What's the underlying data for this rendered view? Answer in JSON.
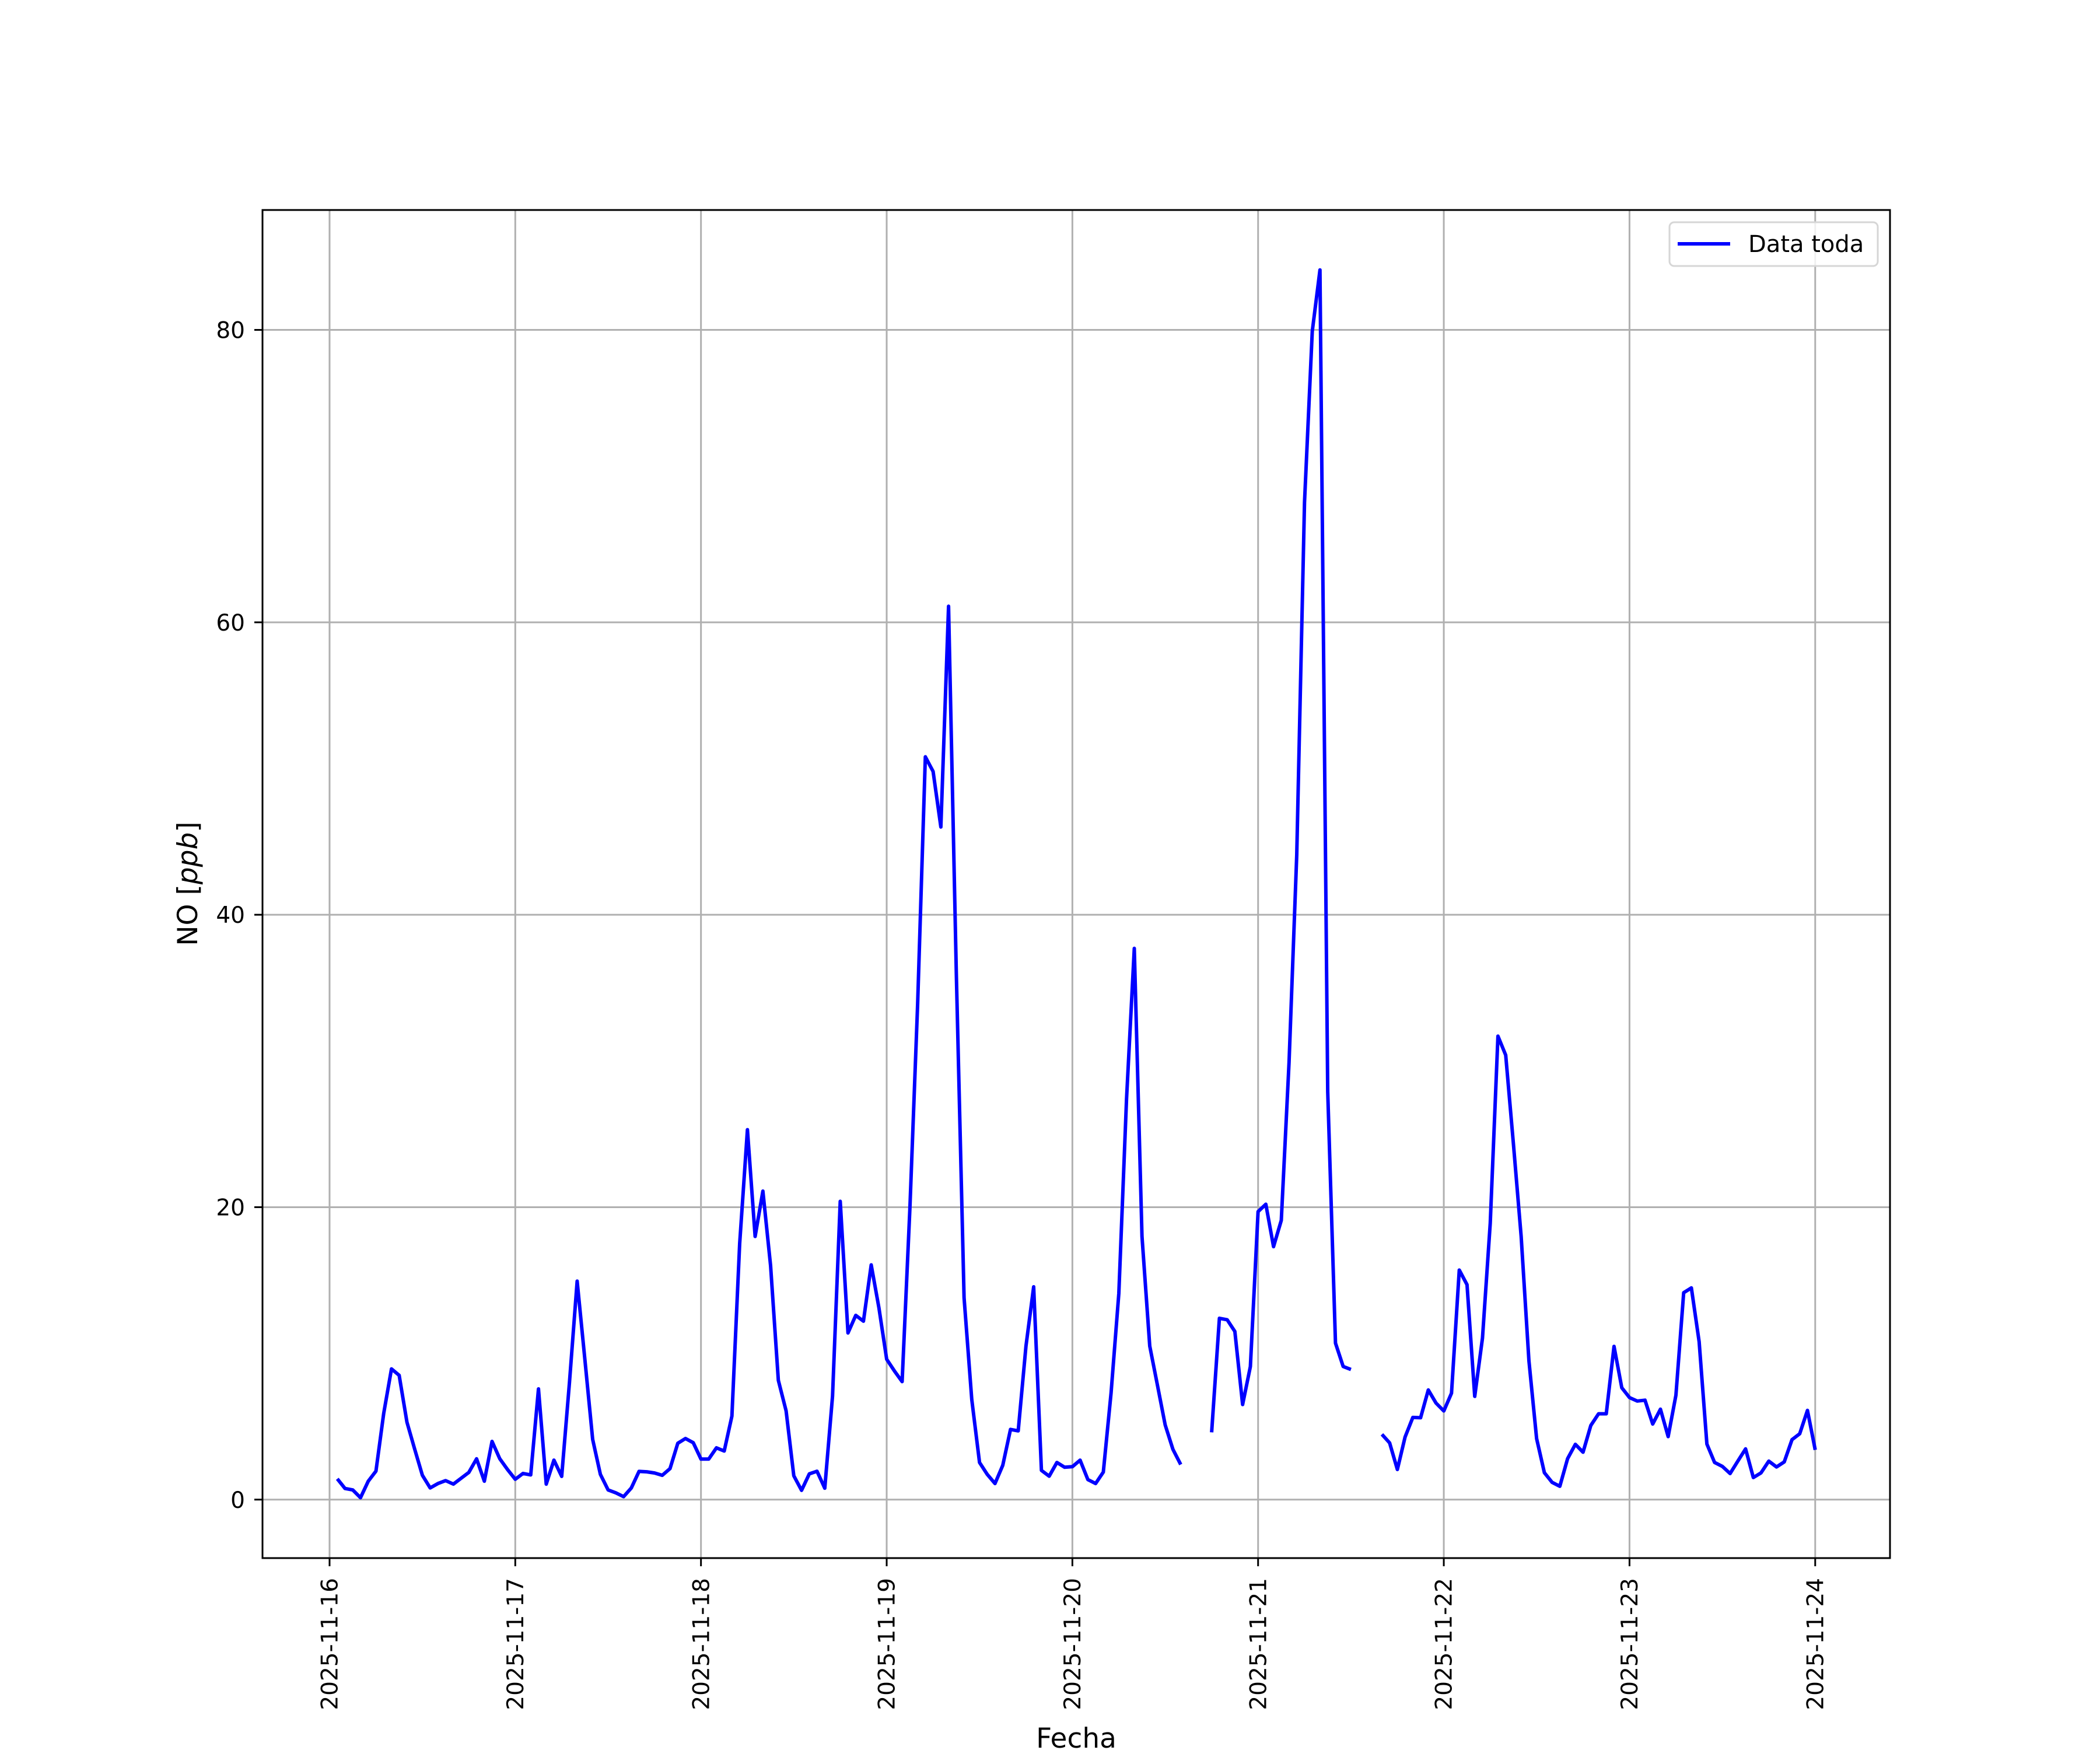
{
  "chart_data": {
    "type": "line",
    "title": "",
    "xlabel": "Fecha",
    "ylabel": "NO [ppb]",
    "ylabel_unit_italic": "ppb",
    "xlim": [
      "2025-11-15 15:20",
      "2025-11-24 09:40"
    ],
    "ylim": [
      -4,
      88.2
    ],
    "x_ticks": [
      "2025-11-16",
      "2025-11-17",
      "2025-11-18",
      "2025-11-19",
      "2025-11-20",
      "2025-11-21",
      "2025-11-22",
      "2025-11-23",
      "2025-11-24"
    ],
    "y_ticks": [
      0,
      20,
      40,
      60,
      80
    ],
    "y_tick_labels": [
      "0",
      "20",
      "40",
      "60",
      "80"
    ],
    "grid": true,
    "legend_placement": "top-right",
    "series": [
      {
        "name": "Data toda",
        "color": "#0000ff",
        "x_start": "2025-11-16 01:00",
        "x_step": "1 hour",
        "values": [
          1.42,
          0.76,
          0.66,
          0.13,
          1.26,
          1.95,
          5.9,
          8.94,
          8.5,
          5.3,
          3.45,
          1.66,
          0.8,
          1.1,
          1.3,
          1.06,
          1.46,
          1.86,
          2.79,
          1.26,
          3.98,
          2.79,
          2.06,
          1.39,
          1.79,
          1.69,
          7.57,
          1.06,
          2.7,
          1.59,
          8.0,
          14.94,
          9.56,
          4.12,
          1.73,
          0.66,
          0.46,
          0.2,
          0.8,
          1.93,
          1.9,
          1.82,
          1.66,
          2.12,
          3.85,
          4.18,
          3.89,
          2.77,
          2.77,
          3.54,
          3.32,
          5.71,
          17.5,
          25.3,
          18.0,
          21.1,
          16.0,
          8.16,
          6.07,
          1.63,
          0.63,
          1.76,
          1.94,
          0.78,
          7.07,
          20.4,
          11.4,
          12.6,
          12.2,
          16.05,
          13.1,
          9.6,
          8.8,
          8.07,
          19.9,
          33.9,
          50.8,
          49.8,
          46.0,
          61.1,
          36.0,
          13.8,
          6.84,
          2.54,
          1.72,
          1.1,
          2.34,
          4.8,
          4.7,
          10.5,
          14.55,
          2.0,
          1.6,
          2.54,
          2.21,
          2.25,
          2.7,
          1.37,
          1.1,
          1.88,
          7.3,
          14.1,
          27.4,
          37.7,
          18.0,
          10.5,
          7.8,
          5.1,
          3.43,
          2.4,
          null,
          null,
          null,
          4.6,
          12.4,
          12.3,
          11.5,
          6.5,
          9.1,
          19.7,
          20.2,
          17.3,
          19.1,
          29.9,
          44.1,
          68.2,
          79.9,
          84.1,
          27.9,
          10.7,
          9.1,
          8.9,
          null,
          null,
          null,
          4.46,
          3.88,
          2.06,
          4.28,
          5.62,
          5.6,
          7.5,
          6.6,
          6.06,
          7.28,
          15.7,
          14.7,
          7.06,
          11.05,
          18.9,
          31.7,
          30.4,
          24.3,
          18.0,
          9.5,
          4.17,
          1.84,
          1.18,
          0.91,
          2.8,
          3.78,
          3.24,
          5.07,
          5.87,
          5.87,
          10.48,
          7.65,
          6.98,
          6.74,
          6.8,
          5.17,
          6.18,
          4.31,
          7.14,
          14.15,
          14.48,
          10.8,
          3.8,
          2.54,
          2.27,
          1.78,
          2.63,
          3.47,
          1.51,
          1.83,
          2.63,
          2.23,
          2.58,
          4.1,
          4.5,
          6.1,
          3.4
        ]
      }
    ]
  },
  "colors": {
    "grid": "#b0b0b0",
    "axes": "#000000",
    "legend_border": "#d6d6d6"
  }
}
